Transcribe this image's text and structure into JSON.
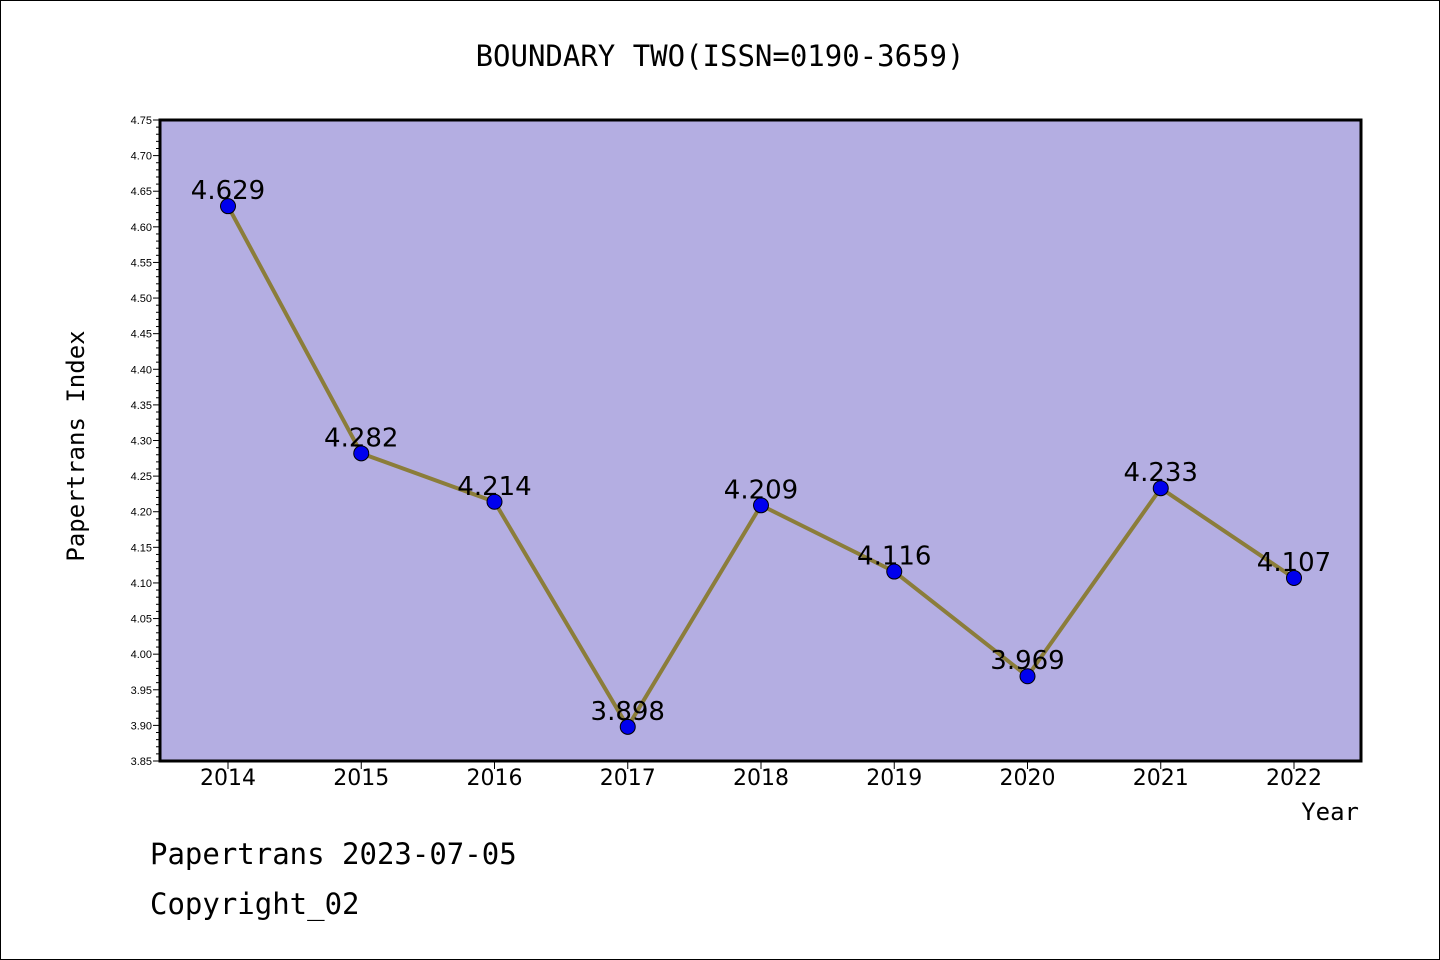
{
  "chart_data": {
    "type": "line",
    "title": "BOUNDARY TWO(ISSN=0190-3659)",
    "xlabel": "Year",
    "ylabel": "Papertrans Index",
    "categories": [
      "2014",
      "2015",
      "2016",
      "2017",
      "2018",
      "2019",
      "2020",
      "2021",
      "2022"
    ],
    "series": [
      {
        "values": [
          4.629,
          4.282,
          4.214,
          3.898,
          4.209,
          4.116,
          3.969,
          4.233,
          4.107
        ],
        "labels": [
          "4.629",
          "4.282",
          "4.214",
          "3.898",
          "4.209",
          "4.116",
          "3.969",
          "4.233",
          "4.107"
        ]
      }
    ],
    "ylim": [
      3.85,
      4.75
    ],
    "yticks": [
      "3.85",
      "3.90",
      "3.95",
      "4.00",
      "4.05",
      "4.10",
      "4.15",
      "4.20",
      "4.25",
      "4.30",
      "4.35",
      "4.40",
      "4.45",
      "4.50",
      "4.55",
      "4.60",
      "4.65",
      "4.70",
      "4.75"
    ],
    "grid": false,
    "colors": {
      "plot_background": "#b4aee2",
      "line": "#8b7d3a",
      "marker": "#0000ee"
    }
  },
  "footer": {
    "line1": "Papertrans 2023-07-05",
    "line2": "Copyright_02"
  }
}
